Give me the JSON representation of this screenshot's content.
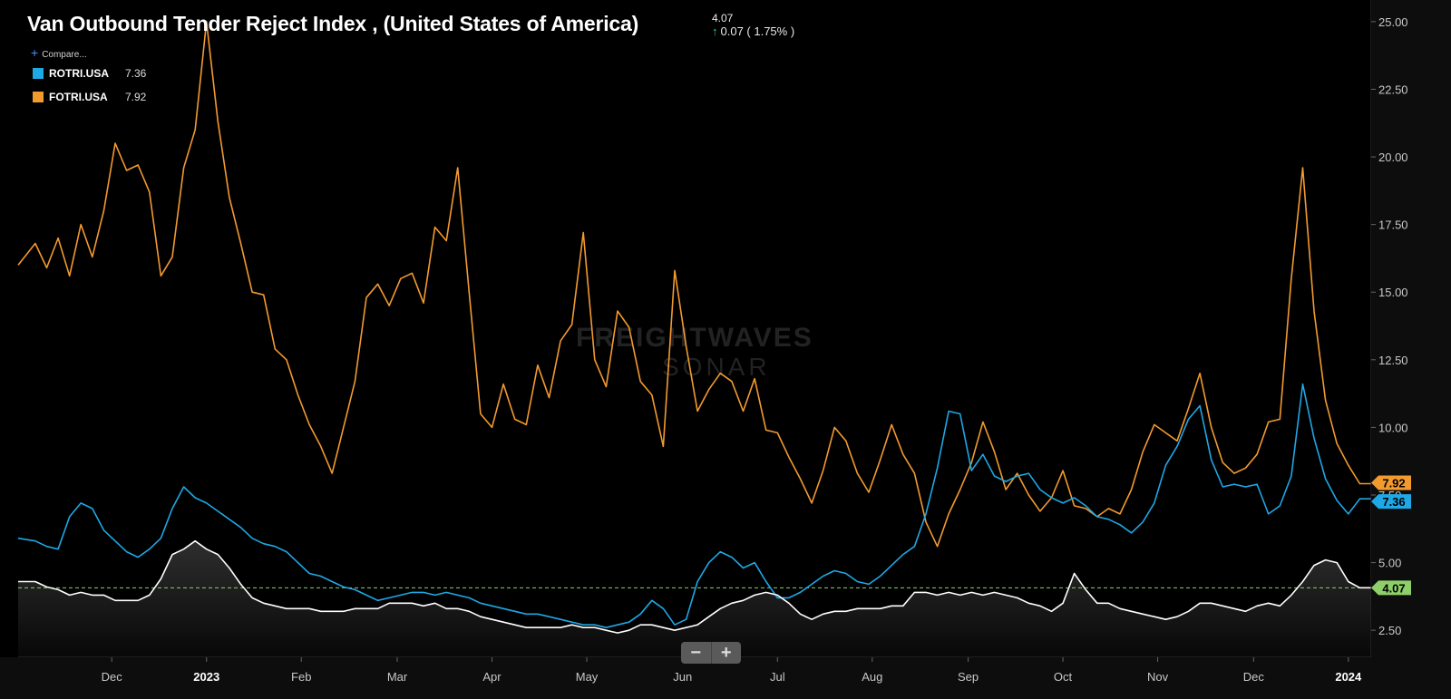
{
  "header": {
    "title": "Van Outbound Tender Reject Index , (United States of America)",
    "last_value": "4.07",
    "change_text": "0.07 ( 1.75% )",
    "compare_label": "Compare..."
  },
  "legend": [
    {
      "name": "ROTRI.USA",
      "value": "7.36",
      "color": "#1ea8e6"
    },
    {
      "name": "FOTRI.USA",
      "value": "7.92",
      "color": "#f39a2f"
    }
  ],
  "zoom": {
    "minus": "−",
    "plus": "+"
  },
  "chart_data": {
    "type": "line",
    "title": "Van Outbound Tender Reject Index , (United States of America)",
    "xlabel": "",
    "ylabel": "",
    "ylim": [
      1.5,
      25.8
    ],
    "y_ticks": [
      2.5,
      5,
      7.5,
      10,
      12.5,
      15,
      17.5,
      20,
      22.5,
      25
    ],
    "y_tick_labels": [
      "2.50",
      "5.00",
      "7.50",
      "10.00",
      "12.50",
      "15.00",
      "17.50",
      "20.00",
      "22.50",
      "25.00"
    ],
    "x_ticks": [
      {
        "label": "Dec",
        "x": 2022.917
      },
      {
        "label": "2023",
        "x": 2023.0
      },
      {
        "label": "Feb",
        "x": 2023.083
      },
      {
        "label": "Mar",
        "x": 2023.167
      },
      {
        "label": "Apr",
        "x": 2023.25
      },
      {
        "label": "May",
        "x": 2023.333
      },
      {
        "label": "Jun",
        "x": 2023.417
      },
      {
        "label": "Jul",
        "x": 2023.5
      },
      {
        "label": "Aug",
        "x": 2023.583
      },
      {
        "label": "Sep",
        "x": 2023.667
      },
      {
        "label": "Oct",
        "x": 2023.75
      },
      {
        "label": "Nov",
        "x": 2023.833
      },
      {
        "label": "Dec",
        "x": 2023.917
      },
      {
        "label": "2024",
        "x": 2024.0
      }
    ],
    "xlim": [
      2022.835,
      2024.02
    ],
    "reference_line": {
      "value": 4.07,
      "label": "4.07",
      "color": "#8fcf6a"
    },
    "grid": false,
    "legend_position": "top-left",
    "series": [
      {
        "name": "FOTRI.USA",
        "color": "#f39a2f",
        "last_label": "7.92",
        "x": [
          2022.835,
          2022.85,
          2022.86,
          2022.87,
          2022.88,
          2022.89,
          2022.9,
          2022.91,
          2022.92,
          2022.93,
          2022.94,
          2022.95,
          2022.96,
          2022.97,
          2022.98,
          2022.99,
          2023.0,
          2023.01,
          2023.02,
          2023.03,
          2023.04,
          2023.05,
          2023.06,
          2023.07,
          2023.08,
          2023.09,
          2023.1,
          2023.11,
          2023.12,
          2023.13,
          2023.14,
          2023.15,
          2023.16,
          2023.17,
          2023.18,
          2023.19,
          2023.2,
          2023.21,
          2023.22,
          2023.23,
          2023.24,
          2023.25,
          2023.26,
          2023.27,
          2023.28,
          2023.29,
          2023.3,
          2023.31,
          2023.32,
          2023.33,
          2023.34,
          2023.35,
          2023.36,
          2023.37,
          2023.38,
          2023.39,
          2023.4,
          2023.41,
          2023.42,
          2023.43,
          2023.44,
          2023.45,
          2023.46,
          2023.47,
          2023.48,
          2023.49,
          2023.5,
          2023.51,
          2023.52,
          2023.53,
          2023.54,
          2023.55,
          2023.56,
          2023.57,
          2023.58,
          2023.59,
          2023.6,
          2023.61,
          2023.62,
          2023.63,
          2023.64,
          2023.65,
          2023.66,
          2023.67,
          2023.68,
          2023.69,
          2023.7,
          2023.71,
          2023.72,
          2023.73,
          2023.74,
          2023.75,
          2023.76,
          2023.77,
          2023.78,
          2023.79,
          2023.8,
          2023.81,
          2023.82,
          2023.83,
          2023.84,
          2023.85,
          2023.86,
          2023.87,
          2023.88,
          2023.89,
          2023.9,
          2023.91,
          2023.92,
          2023.93,
          2023.94,
          2023.95,
          2023.96,
          2023.97,
          2023.98,
          2023.99,
          2024.0,
          2024.01,
          2024.02
        ],
        "values": [
          16.0,
          16.8,
          15.9,
          17.0,
          15.6,
          17.5,
          16.3,
          18.0,
          20.5,
          19.5,
          19.7,
          18.7,
          15.6,
          16.3,
          19.6,
          21.0,
          25.0,
          21.3,
          18.5,
          16.8,
          15.0,
          14.9,
          12.9,
          12.5,
          11.2,
          10.1,
          9.3,
          8.3,
          10.0,
          11.7,
          14.8,
          15.3,
          14.5,
          15.5,
          15.7,
          14.6,
          17.4,
          16.9,
          19.6,
          15.0,
          10.5,
          10.0,
          11.6,
          10.3,
          10.1,
          12.3,
          11.1,
          13.2,
          13.8,
          17.2,
          12.5,
          11.5,
          14.3,
          13.7,
          11.7,
          11.2,
          9.3,
          15.8,
          13.0,
          10.6,
          11.4,
          12.0,
          11.7,
          10.6,
          11.8,
          9.9,
          9.8,
          8.9,
          8.1,
          7.2,
          8.4,
          10.0,
          9.5,
          8.3,
          7.6,
          8.8,
          10.1,
          9.0,
          8.3,
          6.5,
          5.6,
          6.8,
          7.7,
          8.7,
          10.2,
          9.1,
          7.7,
          8.3,
          7.5,
          6.9,
          7.4,
          8.4,
          7.1,
          7.0,
          6.7,
          7.0,
          6.8,
          7.7,
          9.1,
          10.1,
          9.8,
          9.5,
          10.7,
          12.0,
          10.0,
          8.7,
          8.3,
          8.5,
          9.0,
          10.2,
          10.3,
          15.5,
          19.6,
          14.3,
          11.0,
          9.4,
          8.6,
          7.92,
          7.92
        ],
        "dates_note": ""
      },
      {
        "name": "ROTRI.USA",
        "color": "#1ea8e6",
        "last_label": "7.36",
        "x": [
          2022.835,
          2022.85,
          2022.86,
          2022.87,
          2022.88,
          2022.89,
          2022.9,
          2022.91,
          2022.92,
          2022.93,
          2022.94,
          2022.95,
          2022.96,
          2022.97,
          2022.98,
          2022.99,
          2023.0,
          2023.01,
          2023.02,
          2023.03,
          2023.04,
          2023.05,
          2023.06,
          2023.07,
          2023.08,
          2023.09,
          2023.1,
          2023.11,
          2023.12,
          2023.13,
          2023.14,
          2023.15,
          2023.16,
          2023.17,
          2023.18,
          2023.19,
          2023.2,
          2023.21,
          2023.22,
          2023.23,
          2023.24,
          2023.25,
          2023.26,
          2023.27,
          2023.28,
          2023.29,
          2023.3,
          2023.31,
          2023.32,
          2023.33,
          2023.34,
          2023.35,
          2023.36,
          2023.37,
          2023.38,
          2023.39,
          2023.4,
          2023.41,
          2023.42,
          2023.43,
          2023.44,
          2023.45,
          2023.46,
          2023.47,
          2023.48,
          2023.49,
          2023.5,
          2023.51,
          2023.52,
          2023.53,
          2023.54,
          2023.55,
          2023.56,
          2023.57,
          2023.58,
          2023.59,
          2023.6,
          2023.61,
          2023.62,
          2023.63,
          2023.64,
          2023.65,
          2023.66,
          2023.67,
          2023.68,
          2023.69,
          2023.7,
          2023.71,
          2023.72,
          2023.73,
          2023.74,
          2023.75,
          2023.76,
          2023.77,
          2023.78,
          2023.79,
          2023.8,
          2023.81,
          2023.82,
          2023.83,
          2023.84,
          2023.85,
          2023.86,
          2023.87,
          2023.88,
          2023.89,
          2023.9,
          2023.91,
          2023.92,
          2023.93,
          2023.94,
          2023.95,
          2023.96,
          2023.97,
          2023.98,
          2023.99,
          2024.0,
          2024.01,
          2024.02
        ],
        "values": [
          5.9,
          5.8,
          5.6,
          5.5,
          6.7,
          7.2,
          7.0,
          6.2,
          5.8,
          5.4,
          5.2,
          5.5,
          5.9,
          7.0,
          7.8,
          7.4,
          7.2,
          6.9,
          6.6,
          6.3,
          5.9,
          5.7,
          5.6,
          5.4,
          5.0,
          4.6,
          4.5,
          4.3,
          4.1,
          4.0,
          3.8,
          3.6,
          3.7,
          3.8,
          3.9,
          3.9,
          3.8,
          3.9,
          3.8,
          3.7,
          3.5,
          3.4,
          3.3,
          3.2,
          3.1,
          3.1,
          3.0,
          2.9,
          2.8,
          2.7,
          2.7,
          2.6,
          2.7,
          2.8,
          3.1,
          3.6,
          3.3,
          2.7,
          2.9,
          4.3,
          5.0,
          5.4,
          5.2,
          4.8,
          5.0,
          4.3,
          3.7,
          3.7,
          3.9,
          4.2,
          4.5,
          4.7,
          4.6,
          4.3,
          4.2,
          4.5,
          4.9,
          5.3,
          5.6,
          6.8,
          8.5,
          10.6,
          10.5,
          8.4,
          9.0,
          8.2,
          8.0,
          8.2,
          8.3,
          7.7,
          7.4,
          7.2,
          7.4,
          7.1,
          6.7,
          6.6,
          6.4,
          6.1,
          6.5,
          7.2,
          8.6,
          9.3,
          10.3,
          10.8,
          8.8,
          7.8,
          7.9,
          7.8,
          7.9,
          6.8,
          7.1,
          8.2,
          11.6,
          9.6,
          8.1,
          7.3,
          6.8,
          7.36,
          7.36
        ]
      },
      {
        "name": "",
        "color": "#ffffff",
        "last_label": "",
        "x": [
          2022.835,
          2022.85,
          2022.86,
          2022.87,
          2022.88,
          2022.89,
          2022.9,
          2022.91,
          2022.92,
          2022.93,
          2022.94,
          2022.95,
          2022.96,
          2022.97,
          2022.98,
          2022.99,
          2023.0,
          2023.01,
          2023.02,
          2023.03,
          2023.04,
          2023.05,
          2023.06,
          2023.07,
          2023.08,
          2023.09,
          2023.1,
          2023.11,
          2023.12,
          2023.13,
          2023.14,
          2023.15,
          2023.16,
          2023.17,
          2023.18,
          2023.19,
          2023.2,
          2023.21,
          2023.22,
          2023.23,
          2023.24,
          2023.25,
          2023.26,
          2023.27,
          2023.28,
          2023.29,
          2023.3,
          2023.31,
          2023.32,
          2023.33,
          2023.34,
          2023.35,
          2023.36,
          2023.37,
          2023.38,
          2023.39,
          2023.4,
          2023.41,
          2023.42,
          2023.43,
          2023.44,
          2023.45,
          2023.46,
          2023.47,
          2023.48,
          2023.49,
          2023.5,
          2023.51,
          2023.52,
          2023.53,
          2023.54,
          2023.55,
          2023.56,
          2023.57,
          2023.58,
          2023.59,
          2023.6,
          2023.61,
          2023.62,
          2023.63,
          2023.64,
          2023.65,
          2023.66,
          2023.67,
          2023.68,
          2023.69,
          2023.7,
          2023.71,
          2023.72,
          2023.73,
          2023.74,
          2023.75,
          2023.76,
          2023.77,
          2023.78,
          2023.79,
          2023.8,
          2023.81,
          2023.82,
          2023.83,
          2023.84,
          2023.85,
          2023.86,
          2023.87,
          2023.88,
          2023.89,
          2023.9,
          2023.91,
          2023.92,
          2023.93,
          2023.94,
          2023.95,
          2023.96,
          2023.97,
          2023.98,
          2023.99,
          2024.0,
          2024.01,
          2024.02
        ],
        "values": [
          4.3,
          4.3,
          4.1,
          4.0,
          3.8,
          3.9,
          3.8,
          3.8,
          3.6,
          3.6,
          3.6,
          3.8,
          4.4,
          5.3,
          5.5,
          5.8,
          5.5,
          5.3,
          4.8,
          4.2,
          3.7,
          3.5,
          3.4,
          3.3,
          3.3,
          3.3,
          3.2,
          3.2,
          3.2,
          3.3,
          3.3,
          3.3,
          3.5,
          3.5,
          3.5,
          3.4,
          3.5,
          3.3,
          3.3,
          3.2,
          3.0,
          2.9,
          2.8,
          2.7,
          2.6,
          2.6,
          2.6,
          2.6,
          2.7,
          2.6,
          2.6,
          2.5,
          2.4,
          2.5,
          2.7,
          2.7,
          2.6,
          2.5,
          2.6,
          2.7,
          3.0,
          3.3,
          3.5,
          3.6,
          3.8,
          3.9,
          3.8,
          3.5,
          3.1,
          2.9,
          3.1,
          3.2,
          3.2,
          3.3,
          3.3,
          3.3,
          3.4,
          3.4,
          3.9,
          3.9,
          3.8,
          3.9,
          3.8,
          3.9,
          3.8,
          3.9,
          3.8,
          3.7,
          3.5,
          3.4,
          3.2,
          3.5,
          4.6,
          4.0,
          3.5,
          3.5,
          3.3,
          3.2,
          3.1,
          3.0,
          2.9,
          3.0,
          3.2,
          3.5,
          3.5,
          3.4,
          3.3,
          3.2,
          3.4,
          3.5,
          3.4,
          3.8,
          4.3,
          4.9,
          5.1,
          5.0,
          4.3,
          4.07,
          4.07
        ]
      }
    ]
  }
}
